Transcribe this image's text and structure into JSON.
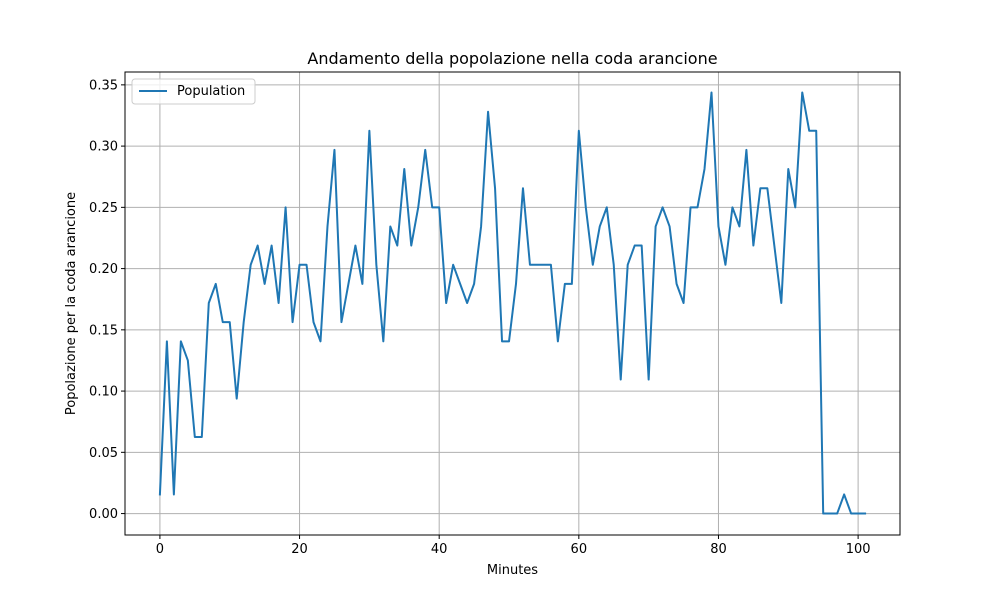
{
  "chart_data": {
    "type": "line",
    "title": "Andamento della popolazione nella coda arancione",
    "xlabel": "Minutes",
    "ylabel": "Popolazione per la coda arancione",
    "xlim": [
      -5,
      106
    ],
    "ylim": [
      -0.0175,
      0.3605
    ],
    "xticks": [
      0,
      20,
      40,
      60,
      80,
      100
    ],
    "yticks": [
      0.0,
      0.05,
      0.1,
      0.15,
      0.2,
      0.25,
      0.3,
      0.35
    ],
    "xtick_labels": [
      "0",
      "20",
      "40",
      "60",
      "80",
      "100"
    ],
    "ytick_labels": [
      "0.00",
      "0.05",
      "0.10",
      "0.15",
      "0.20",
      "0.25",
      "0.30",
      "0.35"
    ],
    "grid": true,
    "legend_position": "top-left",
    "series": [
      {
        "name": "Population",
        "color": "#1f77b4",
        "x": [
          0,
          1,
          2,
          3,
          4,
          5,
          6,
          7,
          8,
          9,
          10,
          11,
          12,
          13,
          14,
          15,
          16,
          17,
          18,
          19,
          20,
          21,
          22,
          23,
          24,
          25,
          26,
          27,
          28,
          29,
          30,
          31,
          32,
          33,
          34,
          35,
          36,
          37,
          38,
          39,
          40,
          41,
          42,
          43,
          44,
          45,
          46,
          47,
          48,
          49,
          50,
          51,
          52,
          53,
          54,
          55,
          56,
          57,
          58,
          59,
          60,
          61,
          62,
          63,
          64,
          65,
          66,
          67,
          68,
          69,
          70,
          71,
          72,
          73,
          74,
          75,
          76,
          77,
          78,
          79,
          80,
          81,
          82,
          83,
          84,
          85,
          86,
          87,
          88,
          89,
          90,
          91,
          92,
          93,
          94,
          95,
          96,
          97,
          98,
          99,
          100,
          101
        ],
        "y": [
          0.0156,
          0.1406,
          0.0156,
          0.1406,
          0.125,
          0.0625,
          0.0625,
          0.1719,
          0.1875,
          0.1563,
          0.1563,
          0.0938,
          0.1563,
          0.2031,
          0.2188,
          0.1875,
          0.2188,
          0.1719,
          0.25,
          0.1563,
          0.2031,
          0.2031,
          0.1563,
          0.1406,
          0.2344,
          0.2969,
          0.1563,
          0.1875,
          0.2188,
          0.1875,
          0.3125,
          0.2031,
          0.1406,
          0.2344,
          0.2188,
          0.2813,
          0.2188,
          0.25,
          0.2969,
          0.25,
          0.25,
          0.1719,
          0.2031,
          0.1875,
          0.1719,
          0.1875,
          0.2344,
          0.3281,
          0.2656,
          0.1406,
          0.1406,
          0.1875,
          0.2656,
          0.2031,
          0.2031,
          0.2031,
          0.2031,
          0.1406,
          0.1875,
          0.1875,
          0.3125,
          0.25,
          0.2031,
          0.2344,
          0.25,
          0.2031,
          0.1094,
          0.2031,
          0.2188,
          0.2188,
          0.1094,
          0.2344,
          0.25,
          0.2344,
          0.1875,
          0.1719,
          0.25,
          0.25,
          0.2813,
          0.3438,
          0.2344,
          0.2031,
          0.25,
          0.2344,
          0.2969,
          0.2188,
          0.2656,
          0.2656,
          0.2188,
          0.1719,
          0.2813,
          0.25,
          0.3438,
          0.3125,
          0.3125,
          0.0,
          0.0,
          0.0,
          0.0156,
          0.0,
          0.0,
          0.0
        ]
      }
    ]
  }
}
